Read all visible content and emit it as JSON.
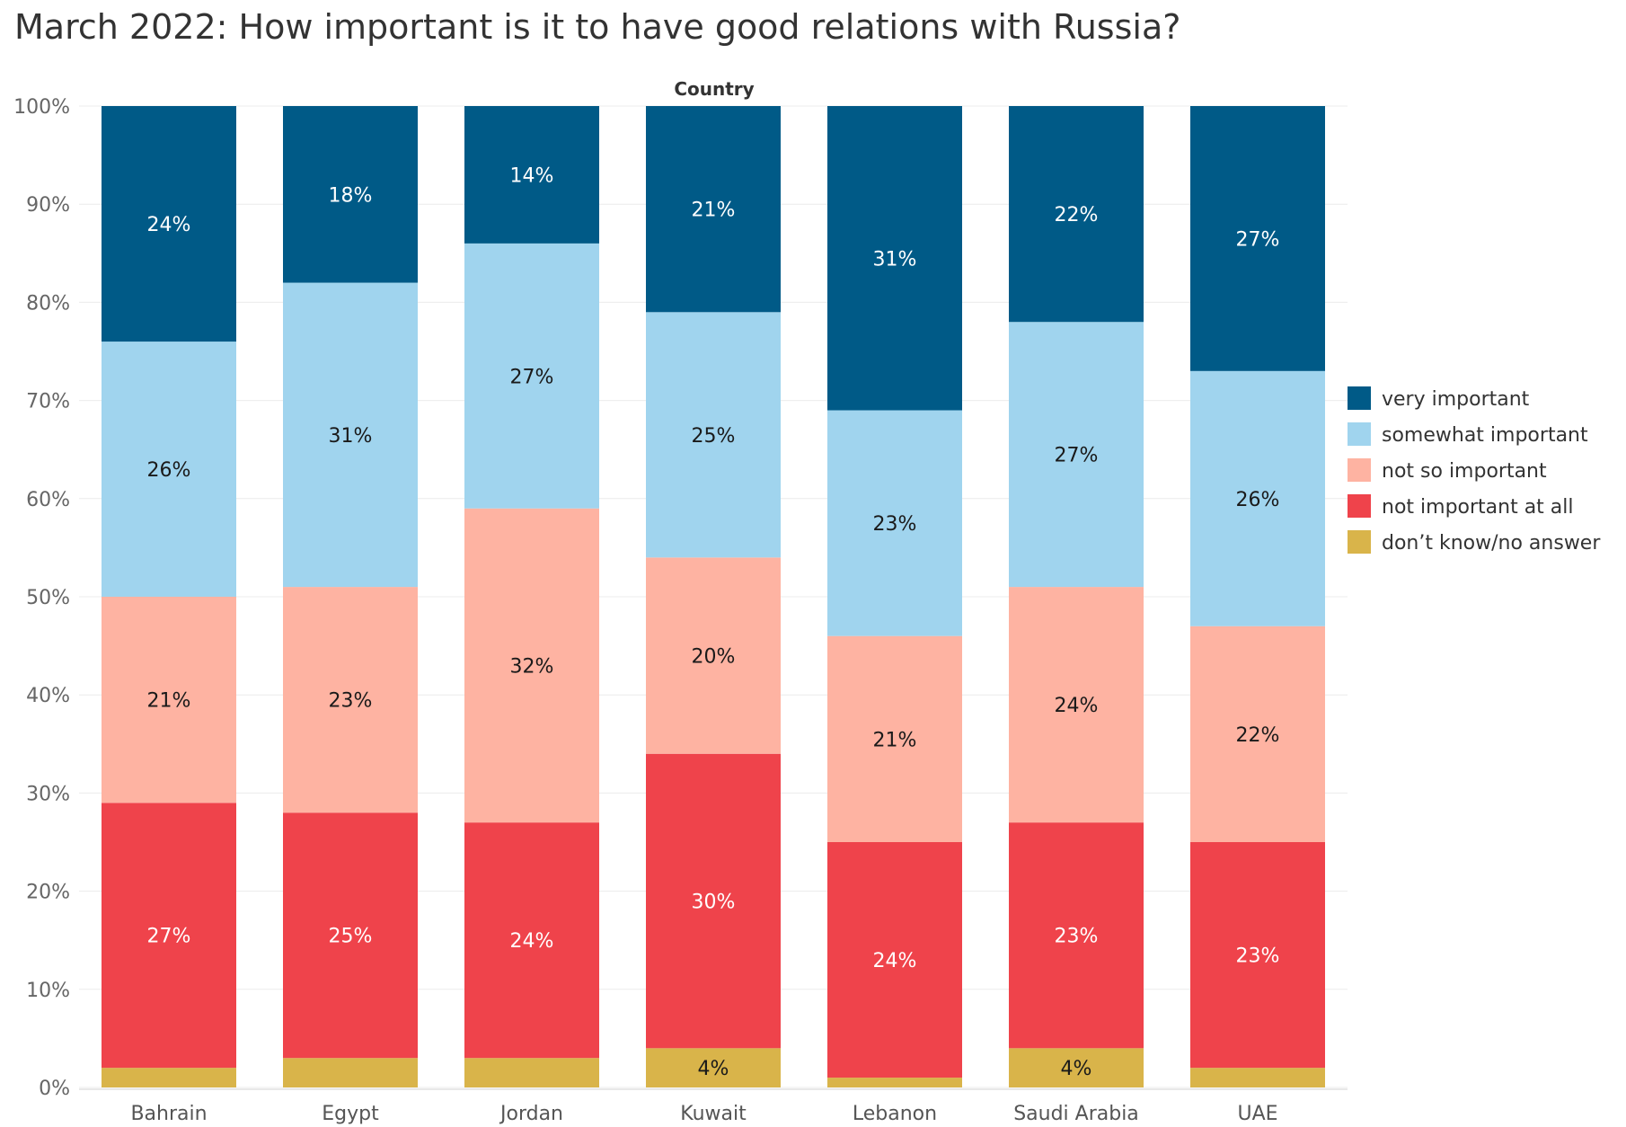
{
  "chart_data": {
    "type": "bar",
    "stacked": true,
    "orientation": "vertical",
    "title": "March 2022: How important is it to have good relations with Russia?",
    "column_header": "Country",
    "categories": [
      "Bahrain",
      "Egypt",
      "Jordan",
      "Kuwait",
      "Lebanon",
      "Saudi Arabia",
      "UAE"
    ],
    "ylim": [
      0,
      100
    ],
    "yticks": [
      "0%",
      "10%",
      "20%",
      "30%",
      "40%",
      "50%",
      "60%",
      "70%",
      "80%",
      "90%",
      "100%"
    ],
    "grid": true,
    "legend_position": "right",
    "series": [
      {
        "name": "don’t know/no answer",
        "color": "#d9b44a",
        "label_color": "#1a1a1a",
        "values": [
          2,
          3,
          3,
          4,
          1,
          4,
          2
        ],
        "labels": [
          "",
          "",
          "",
          "4%",
          "",
          "4%",
          ""
        ]
      },
      {
        "name": "not important at all",
        "color": "#ef434b",
        "label_color": "#ffffff",
        "values": [
          27,
          25,
          24,
          30,
          24,
          23,
          23
        ],
        "labels": [
          "27%",
          "25%",
          "24%",
          "30%",
          "24%",
          "23%",
          "23%"
        ]
      },
      {
        "name": "not so important",
        "color": "#feb3a2",
        "label_color": "#1a1a1a",
        "values": [
          21,
          23,
          32,
          20,
          21,
          24,
          22
        ],
        "labels": [
          "21%",
          "23%",
          "32%",
          "20%",
          "21%",
          "24%",
          "22%"
        ]
      },
      {
        "name": "somewhat important",
        "color": "#a0d4ee",
        "label_color": "#1a1a1a",
        "values": [
          26,
          31,
          27,
          25,
          23,
          27,
          26
        ],
        "labels": [
          "26%",
          "31%",
          "27%",
          "25%",
          "23%",
          "27%",
          "26%"
        ]
      },
      {
        "name": "very important",
        "color": "#005a87",
        "label_color": "#ffffff",
        "values": [
          24,
          18,
          14,
          21,
          31,
          22,
          27
        ],
        "labels": [
          "24%",
          "18%",
          "14%",
          "21%",
          "31%",
          "22%",
          "27%"
        ]
      }
    ],
    "legend_order": [
      "very important",
      "somewhat important",
      "not so important",
      "not important at all",
      "don’t know/no answer"
    ]
  }
}
